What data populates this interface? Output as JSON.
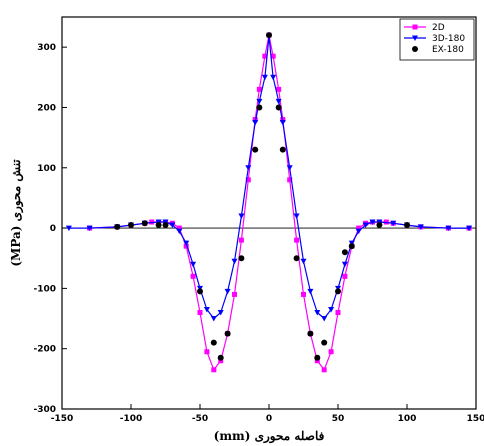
{
  "chart_data": {
    "type": "line",
    "xlabel": "فاصله محوری (mm)",
    "ylabel": "تنش محوری (MPa)",
    "xlim": [
      -150,
      150
    ],
    "ylim": [
      -300,
      350
    ],
    "xticks": [
      -150,
      -100,
      -50,
      0,
      50,
      100,
      150
    ],
    "yticks": [
      -300,
      -200,
      -100,
      0,
      100,
      200,
      300
    ],
    "xtick_labels": [
      "-150",
      "-100",
      "-50",
      "0",
      "50",
      "100",
      "150"
    ],
    "ytick_labels": [
      "-300",
      "-200",
      "-100",
      "0",
      "100",
      "200",
      "300"
    ],
    "legend": {
      "position": "top-right"
    },
    "series": [
      {
        "name": "2D",
        "color": "#ff00ff",
        "marker": "square",
        "x": [
          -130,
          -110,
          -100,
          -90,
          -85,
          -80,
          -75,
          -70,
          -65,
          -60,
          -55,
          -50,
          -45,
          -40,
          -35,
          -30,
          -25,
          -20,
          -15,
          -10,
          -7,
          -3,
          0,
          3,
          7,
          10,
          15,
          20,
          25,
          30,
          35,
          40,
          45,
          50,
          55,
          60,
          65,
          70,
          75,
          80,
          85,
          90,
          100,
          110,
          130,
          145
        ],
        "y": [
          0,
          2,
          5,
          8,
          10,
          10,
          10,
          8,
          0,
          -30,
          -80,
          -140,
          -205,
          -235,
          -220,
          -175,
          -110,
          -20,
          80,
          180,
          230,
          285,
          320,
          285,
          230,
          180,
          80,
          -20,
          -110,
          -175,
          -220,
          -235,
          -205,
          -140,
          -80,
          -30,
          0,
          8,
          10,
          10,
          10,
          8,
          5,
          2,
          0,
          0
        ]
      },
      {
        "name": "3D-180",
        "color": "#0000ff",
        "marker": "triangle-down",
        "x": [
          -145,
          -130,
          -110,
          -100,
          -90,
          -80,
          -75,
          -70,
          -65,
          -60,
          -55,
          -50,
          -45,
          -40,
          -35,
          -30,
          -25,
          -20,
          -15,
          -10,
          -7,
          -3,
          0,
          3,
          7,
          10,
          15,
          20,
          25,
          30,
          35,
          40,
          45,
          50,
          55,
          60,
          65,
          70,
          75,
          80,
          90,
          100,
          110,
          130,
          145
        ],
        "y": [
          0,
          0,
          2,
          5,
          8,
          10,
          10,
          5,
          -5,
          -25,
          -60,
          -100,
          -135,
          -150,
          -140,
          -105,
          -55,
          20,
          100,
          175,
          210,
          250,
          318,
          250,
          210,
          175,
          100,
          20,
          -55,
          -105,
          -140,
          -150,
          -135,
          -100,
          -60,
          -25,
          -5,
          5,
          10,
          10,
          8,
          5,
          2,
          0,
          0
        ]
      },
      {
        "name": "EX-180",
        "color": "#000000",
        "marker": "dot",
        "x": [
          -110,
          -100,
          -90,
          -80,
          -75,
          -50,
          -40,
          -35,
          -30,
          -20,
          -10,
          -7,
          0,
          7,
          10,
          20,
          30,
          35,
          40,
          50,
          55,
          60,
          80,
          100
        ],
        "y": [
          2,
          5,
          8,
          5,
          5,
          -105,
          -190,
          -215,
          -175,
          -50,
          130,
          200,
          320,
          200,
          130,
          -50,
          -175,
          -215,
          -190,
          -105,
          -40,
          -30,
          5,
          5
        ]
      }
    ]
  }
}
